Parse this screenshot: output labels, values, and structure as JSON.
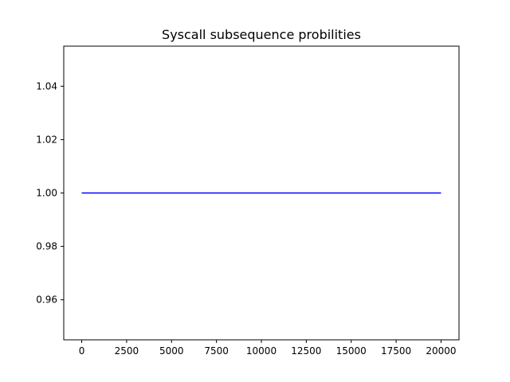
{
  "chart_data": {
    "type": "line",
    "title": "Syscall subsequence probilities",
    "xlabel": "",
    "ylabel": "",
    "xlim": [
      -1000,
      21000
    ],
    "ylim": [
      0.945,
      1.055
    ],
    "x_ticks": [
      0,
      2500,
      5000,
      7500,
      10000,
      12500,
      15000,
      17500,
      20000
    ],
    "x_tick_labels": [
      "0",
      "2500",
      "5000",
      "7500",
      "10000",
      "12500",
      "15000",
      "17500",
      "20000"
    ],
    "y_ticks": [
      0.96,
      0.98,
      1.0,
      1.02,
      1.04
    ],
    "y_tick_labels": [
      "0.96",
      "0.98",
      "1.00",
      "1.02",
      "1.04"
    ],
    "grid": false,
    "series": [
      {
        "color": "#0000ff",
        "x": [
          0,
          20000
        ],
        "y": [
          1.0,
          1.0
        ]
      }
    ]
  }
}
